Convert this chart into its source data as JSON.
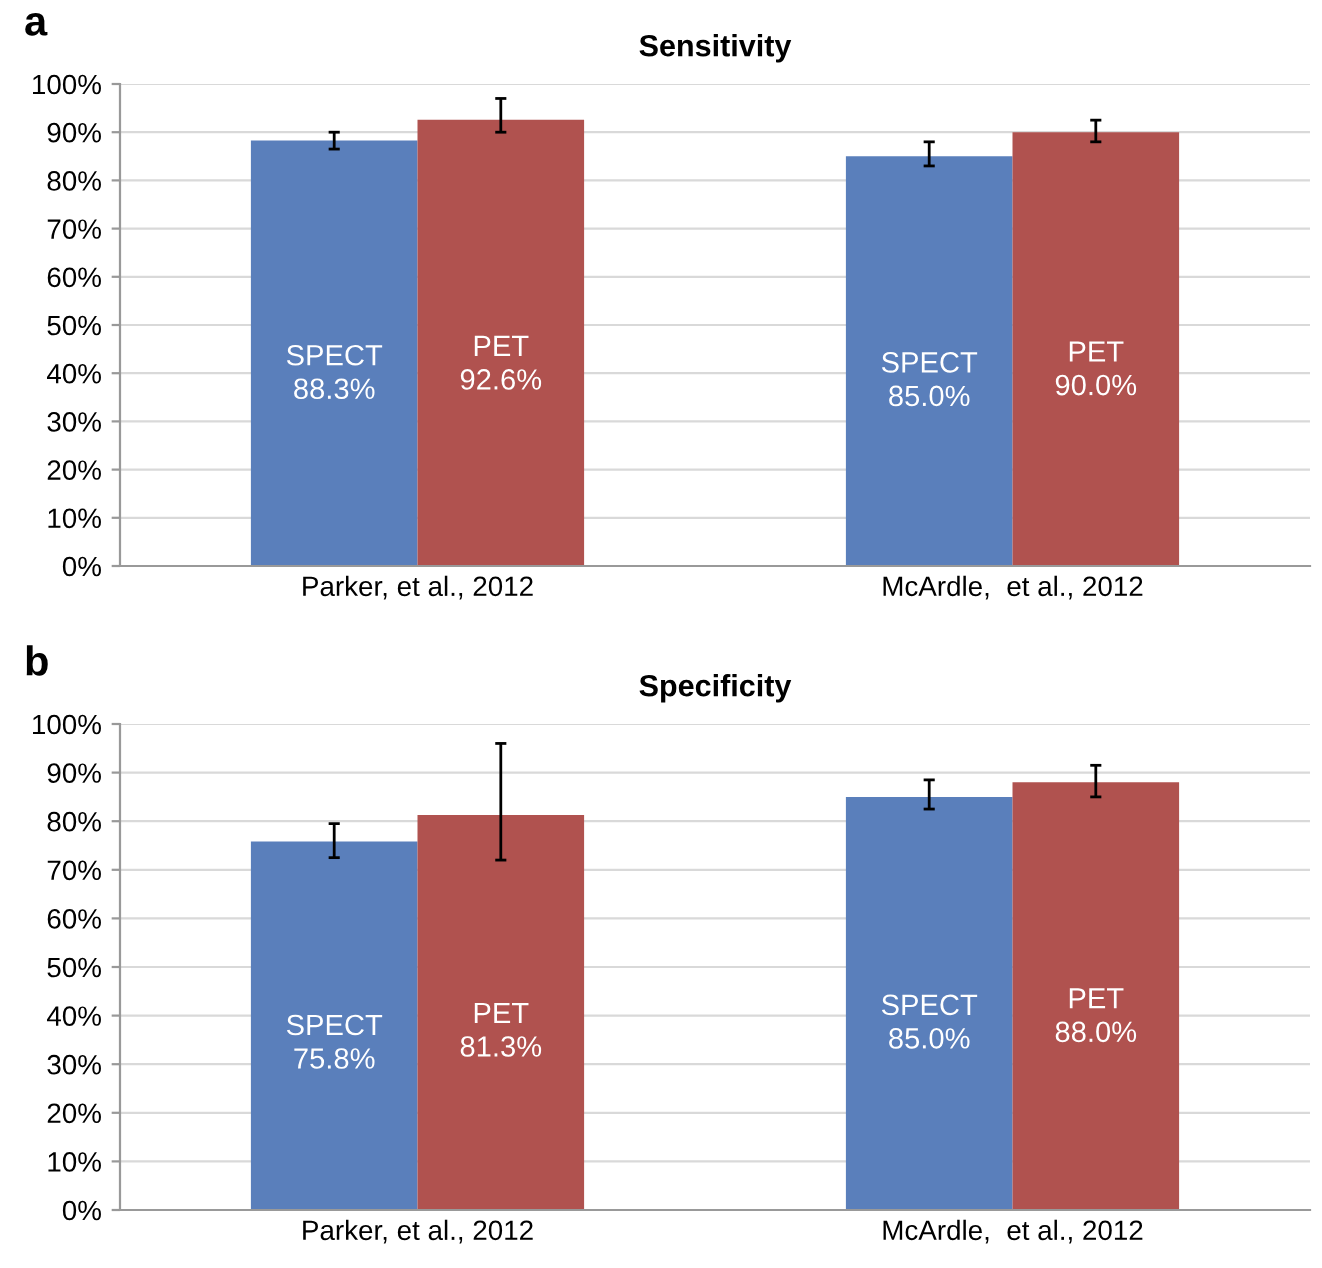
{
  "chart_data": [
    {
      "type": "bar",
      "title": "Sensitivity",
      "annotations": [
        "a"
      ],
      "categories": [
        "Parker, et al., 2012",
        "McArdle,  et al., 2012"
      ],
      "series": [
        {
          "name": "SPECT",
          "color": "#5a7fbb",
          "values": [
            88.3,
            85.0
          ],
          "errors": [
            [
              86.5,
              90
            ],
            [
              83,
              88
            ]
          ],
          "value_labels": [
            "88.3%",
            "85.0%"
          ]
        },
        {
          "name": "PET",
          "color": "#b0524f",
          "values": [
            92.6,
            90.0
          ],
          "errors": [
            [
              90,
              97
            ],
            [
              88,
              92.5
            ]
          ],
          "value_labels": [
            "92.6%",
            "90.0%"
          ]
        }
      ],
      "ylim": [
        0,
        100
      ],
      "yticks": [
        {
          "value": 0,
          "label": "0%"
        },
        {
          "value": 10,
          "label": "10%"
        },
        {
          "value": 20,
          "label": "20%"
        },
        {
          "value": 30,
          "label": "30%"
        },
        {
          "value": 40,
          "label": "40%"
        },
        {
          "value": 50,
          "label": "50%"
        },
        {
          "value": 60,
          "label": "60%"
        },
        {
          "value": 70,
          "label": "70%"
        },
        {
          "value": 80,
          "label": "80%"
        },
        {
          "value": 90,
          "label": "90%"
        },
        {
          "value": 100,
          "label": "100%"
        }
      ],
      "grid": "y",
      "legend": false
    },
    {
      "type": "bar",
      "title": "Specificity",
      "annotations": [
        "b"
      ],
      "categories": [
        "Parker, et al., 2012",
        "McArdle,  et al., 2012"
      ],
      "series": [
        {
          "name": "SPECT",
          "color": "#5a7fbb",
          "values": [
            75.8,
            85.0
          ],
          "errors": [
            [
              72.5,
              79.5
            ],
            [
              82.5,
              88.5
            ]
          ],
          "value_labels": [
            "75.8%",
            "85.0%"
          ]
        },
        {
          "name": "PET",
          "color": "#b0524f",
          "values": [
            81.3,
            88.0
          ],
          "errors": [
            [
              72,
              96
            ],
            [
              85,
              91.5
            ]
          ],
          "value_labels": [
            "81.3%",
            "88.0%"
          ]
        }
      ],
      "ylim": [
        0,
        100
      ],
      "yticks": [
        {
          "value": 0,
          "label": "0%"
        },
        {
          "value": 10,
          "label": "10%"
        },
        {
          "value": 20,
          "label": "20%"
        },
        {
          "value": 30,
          "label": "30%"
        },
        {
          "value": 40,
          "label": "40%"
        },
        {
          "value": 50,
          "label": "50%"
        },
        {
          "value": 60,
          "label": "60%"
        },
        {
          "value": 70,
          "label": "70%"
        },
        {
          "value": 80,
          "label": "80%"
        },
        {
          "value": 90,
          "label": "90%"
        },
        {
          "value": 100,
          "label": "100%"
        }
      ],
      "grid": "y",
      "legend": false
    }
  ]
}
